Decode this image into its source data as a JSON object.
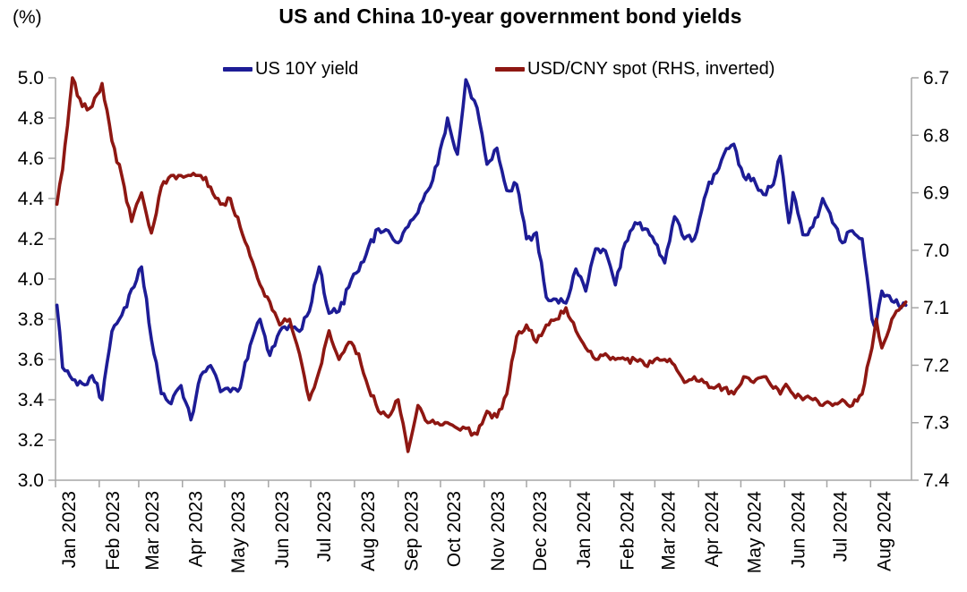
{
  "chart_data": {
    "type": "line",
    "title": "US and China 10-year government bond yields",
    "axis_color": "#a6a6a6",
    "left_axis": {
      "unit": "(%)",
      "min": 3.0,
      "max": 5.0,
      "ticks": [
        "5.0",
        "4.8",
        "4.6",
        "4.4",
        "4.2",
        "4.0",
        "3.8",
        "3.6",
        "3.4",
        "3.2",
        "3.0"
      ]
    },
    "right_axis": {
      "description": "USD/CNY spot, inverted (higher = weaker CNY, plotted lower)",
      "min": 6.7,
      "max": 7.4,
      "inverted": true,
      "ticks": [
        "6.7",
        "6.8",
        "6.9",
        "7.0",
        "7.1",
        "7.2",
        "7.3",
        "7.4"
      ]
    },
    "x_axis": {
      "start": "2023-01-01",
      "end": "2024-08-30",
      "tick_labels": [
        "Jan 2023",
        "Feb 2023",
        "Mar 2023",
        "Apr 2023",
        "May 2023",
        "Jun 2023",
        "Jul 2023",
        "Aug 2023",
        "Sep 2023",
        "Oct 2023",
        "Nov 2023",
        "Dec 2023",
        "Jan 2024",
        "Feb 2024",
        "Mar 2024",
        "Apr 2024",
        "May 2024",
        "Jun 2024",
        "Jul 2024",
        "Aug 2024"
      ]
    },
    "x": [
      "2023-01-02",
      "2023-01-06",
      "2023-01-13",
      "2023-01-20",
      "2023-01-27",
      "2023-02-03",
      "2023-02-10",
      "2023-02-17",
      "2023-02-24",
      "2023-03-03",
      "2023-03-10",
      "2023-03-17",
      "2023-03-24",
      "2023-03-31",
      "2023-04-07",
      "2023-04-14",
      "2023-04-21",
      "2023-04-28",
      "2023-05-05",
      "2023-05-12",
      "2023-05-19",
      "2023-05-26",
      "2023-06-02",
      "2023-06-09",
      "2023-06-16",
      "2023-06-23",
      "2023-06-30",
      "2023-07-07",
      "2023-07-14",
      "2023-07-21",
      "2023-07-28",
      "2023-08-04",
      "2023-08-11",
      "2023-08-18",
      "2023-08-25",
      "2023-09-01",
      "2023-09-08",
      "2023-09-15",
      "2023-09-22",
      "2023-09-29",
      "2023-10-06",
      "2023-10-13",
      "2023-10-19",
      "2023-10-27",
      "2023-11-03",
      "2023-11-10",
      "2023-11-17",
      "2023-11-24",
      "2023-12-01",
      "2023-12-08",
      "2023-12-15",
      "2023-12-22",
      "2023-12-29",
      "2024-01-05",
      "2024-01-12",
      "2024-01-19",
      "2024-01-26",
      "2024-02-02",
      "2024-02-09",
      "2024-02-16",
      "2024-02-23",
      "2024-03-01",
      "2024-03-08",
      "2024-03-15",
      "2024-03-22",
      "2024-03-29",
      "2024-04-05",
      "2024-04-12",
      "2024-04-19",
      "2024-04-26",
      "2024-05-03",
      "2024-05-10",
      "2024-05-17",
      "2024-05-24",
      "2024-05-29",
      "2024-05-31",
      "2024-06-04",
      "2024-06-07",
      "2024-06-14",
      "2024-06-21",
      "2024-06-28",
      "2024-07-05",
      "2024-07-12",
      "2024-07-19",
      "2024-07-26",
      "2024-08-02",
      "2024-08-05",
      "2024-08-09",
      "2024-08-16",
      "2024-08-26"
    ],
    "series": [
      {
        "name": "US 10Y yield",
        "axis": "left",
        "color": "#1d1c96",
        "values": [
          3.87,
          3.56,
          3.5,
          3.48,
          3.52,
          3.4,
          3.74,
          3.82,
          3.95,
          4.06,
          3.7,
          3.43,
          3.38,
          3.47,
          3.3,
          3.52,
          3.57,
          3.44,
          3.44,
          3.46,
          3.67,
          3.8,
          3.62,
          3.74,
          3.77,
          3.74,
          3.84,
          4.06,
          3.83,
          3.84,
          3.96,
          4.04,
          4.16,
          4.25,
          4.24,
          4.18,
          4.26,
          4.33,
          4.44,
          4.57,
          4.8,
          4.62,
          4.99,
          4.85,
          4.57,
          4.65,
          4.44,
          4.47,
          4.2,
          4.23,
          3.91,
          3.9,
          3.88,
          4.05,
          3.94,
          4.15,
          4.14,
          3.97,
          4.18,
          4.28,
          4.25,
          4.18,
          4.08,
          4.31,
          4.2,
          4.2,
          4.4,
          4.52,
          4.62,
          4.67,
          4.51,
          4.5,
          4.42,
          4.47,
          4.61,
          4.51,
          4.28,
          4.43,
          4.22,
          4.26,
          4.4,
          4.28,
          4.18,
          4.24,
          4.2,
          3.8,
          3.78,
          3.94,
          3.89,
          3.87
        ]
      },
      {
        "name": "USD/CNY spot (RHS, inverted)",
        "axis": "right",
        "color": "#8e1712",
        "values": [
          6.92,
          6.86,
          6.7,
          6.75,
          6.75,
          6.71,
          6.81,
          6.87,
          6.95,
          6.9,
          6.97,
          6.89,
          6.87,
          6.87,
          6.87,
          6.87,
          6.89,
          6.92,
          6.91,
          6.96,
          7.01,
          7.06,
          7.09,
          7.13,
          7.12,
          7.18,
          7.26,
          7.21,
          7.14,
          7.19,
          7.16,
          7.18,
          7.24,
          7.28,
          7.29,
          7.26,
          7.35,
          7.27,
          7.3,
          7.3,
          7.3,
          7.31,
          7.31,
          7.32,
          7.28,
          7.29,
          7.25,
          7.15,
          7.13,
          7.16,
          7.13,
          7.12,
          7.1,
          7.14,
          7.17,
          7.19,
          7.18,
          7.19,
          7.19,
          7.19,
          7.2,
          7.19,
          7.19,
          7.2,
          7.23,
          7.22,
          7.23,
          7.24,
          7.24,
          7.25,
          7.22,
          7.23,
          7.22,
          7.24,
          7.25,
          7.24,
          7.24,
          7.25,
          7.26,
          7.26,
          7.27,
          7.27,
          7.26,
          7.27,
          7.25,
          7.17,
          7.12,
          7.17,
          7.12,
          7.09
        ]
      }
    ],
    "legend_position": "top"
  }
}
